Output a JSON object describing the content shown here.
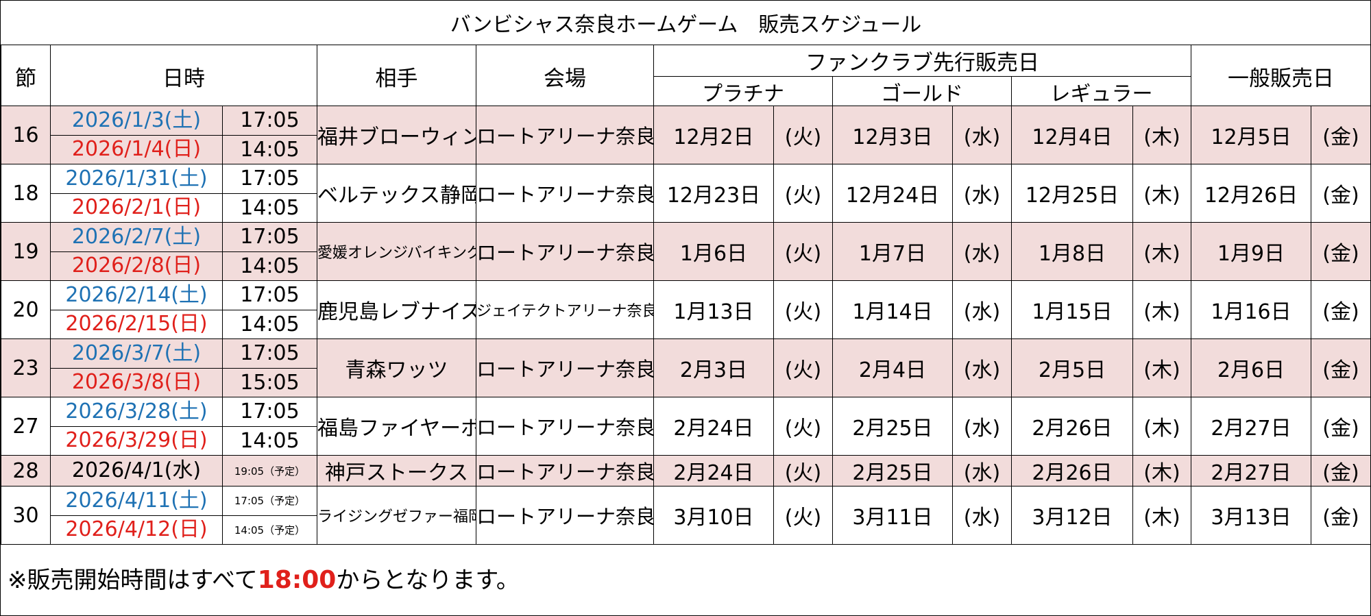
{
  "title": "バンビシャス奈良ホームゲーム　販売スケジュール",
  "headers": {
    "setsu": "節",
    "nichiji": "日時",
    "aite": "相手",
    "kaijo": "会場",
    "fanclub": "ファンクラブ先行販売日",
    "platinum": "プラチナ",
    "gold": "ゴールド",
    "regular": "レギュラー",
    "general": "一般販売日"
  },
  "rows": [
    {
      "setsu": "16",
      "date1": "2026/1/3(土)",
      "time1": "17:05",
      "date2": "2026/1/4(日)",
      "time2": "14:05",
      "opponent": "福井ブローウィンズ",
      "venue": "ロートアリーナ奈良",
      "plat": "12月2日",
      "plat_wd": "(火)",
      "gold": "12月3日",
      "gold_wd": "(水)",
      "reg": "12月4日",
      "reg_wd": "(木)",
      "gen": "12月5日",
      "gen_wd": "(金)"
    },
    {
      "setsu": "18",
      "date1": "2026/1/31(土)",
      "time1": "17:05",
      "date2": "2026/2/1(日)",
      "time2": "14:05",
      "opponent": "ベルテックス静岡",
      "venue": "ロートアリーナ奈良",
      "plat": "12月23日",
      "plat_wd": "(火)",
      "gold": "12月24日",
      "gold_wd": "(水)",
      "reg": "12月25日",
      "reg_wd": "(木)",
      "gen": "12月26日",
      "gen_wd": "(金)"
    },
    {
      "setsu": "19",
      "date1": "2026/2/7(土)",
      "time1": "17:05",
      "date2": "2026/2/8(日)",
      "time2": "14:05",
      "opponent": "愛媛オレンジバイキングス",
      "venue": "ロートアリーナ奈良",
      "plat": "1月6日",
      "plat_wd": "(火)",
      "gold": "1月7日",
      "gold_wd": "(水)",
      "reg": "1月8日",
      "reg_wd": "(木)",
      "gen": "1月9日",
      "gen_wd": "(金)"
    },
    {
      "setsu": "20",
      "date1": "2026/2/14(土)",
      "time1": "17:05",
      "date2": "2026/2/15(日)",
      "time2": "14:05",
      "opponent": "鹿児島レブナイズ",
      "venue": "ジェイテクトアリーナ奈良",
      "plat": "1月13日",
      "plat_wd": "(火)",
      "gold": "1月14日",
      "gold_wd": "(水)",
      "reg": "1月15日",
      "reg_wd": "(木)",
      "gen": "1月16日",
      "gen_wd": "(金)"
    },
    {
      "setsu": "23",
      "date1": "2026/3/7(土)",
      "time1": "17:05",
      "date2": "2026/3/8(日)",
      "time2": "15:05",
      "opponent": "青森ワッツ",
      "venue": "ロートアリーナ奈良",
      "plat": "2月3日",
      "plat_wd": "(火)",
      "gold": "2月4日",
      "gold_wd": "(水)",
      "reg": "2月5日",
      "reg_wd": "(木)",
      "gen": "2月6日",
      "gen_wd": "(金)"
    },
    {
      "setsu": "27",
      "date1": "2026/3/28(土)",
      "time1": "17:05",
      "date2": "2026/3/29(日)",
      "time2": "14:05",
      "opponent": "福島ファイヤーボンズ",
      "venue": "ロートアリーナ奈良",
      "plat": "2月24日",
      "plat_wd": "(火)",
      "gold": "2月25日",
      "gold_wd": "(水)",
      "reg": "2月26日",
      "reg_wd": "(木)",
      "gen": "2月27日",
      "gen_wd": "(金)"
    },
    {
      "setsu": "28",
      "date1": "2026/4/1(水)",
      "time1": "19:05（予定）",
      "opponent": "神戸ストークス",
      "venue": "ロートアリーナ奈良",
      "plat": "2月24日",
      "plat_wd": "(火)",
      "gold": "2月25日",
      "gold_wd": "(水)",
      "reg": "2月26日",
      "reg_wd": "(木)",
      "gen": "2月27日",
      "gen_wd": "(金)"
    },
    {
      "setsu": "30",
      "date1": "2026/4/11(土)",
      "time1": "17:05（予定）",
      "date2": "2026/4/12(日)",
      "time2": "14:05（予定）",
      "opponent": "ライジングゼファー福岡",
      "venue": "ロートアリーナ奈良",
      "plat": "3月10日",
      "plat_wd": "(火)",
      "gold": "3月11日",
      "gold_wd": "(水)",
      "reg": "3月12日",
      "reg_wd": "(木)",
      "gen": "3月13日",
      "gen_wd": "(金)"
    }
  ],
  "note_prefix": "※販売開始時間はすべて",
  "note_time": "18:00",
  "note_suffix": "からとなります。",
  "colors": {
    "saturday": "#1f72b4",
    "sunday": "#e0201b",
    "row_pink": "#f2dcdb",
    "highlight": "#e0201b"
  }
}
